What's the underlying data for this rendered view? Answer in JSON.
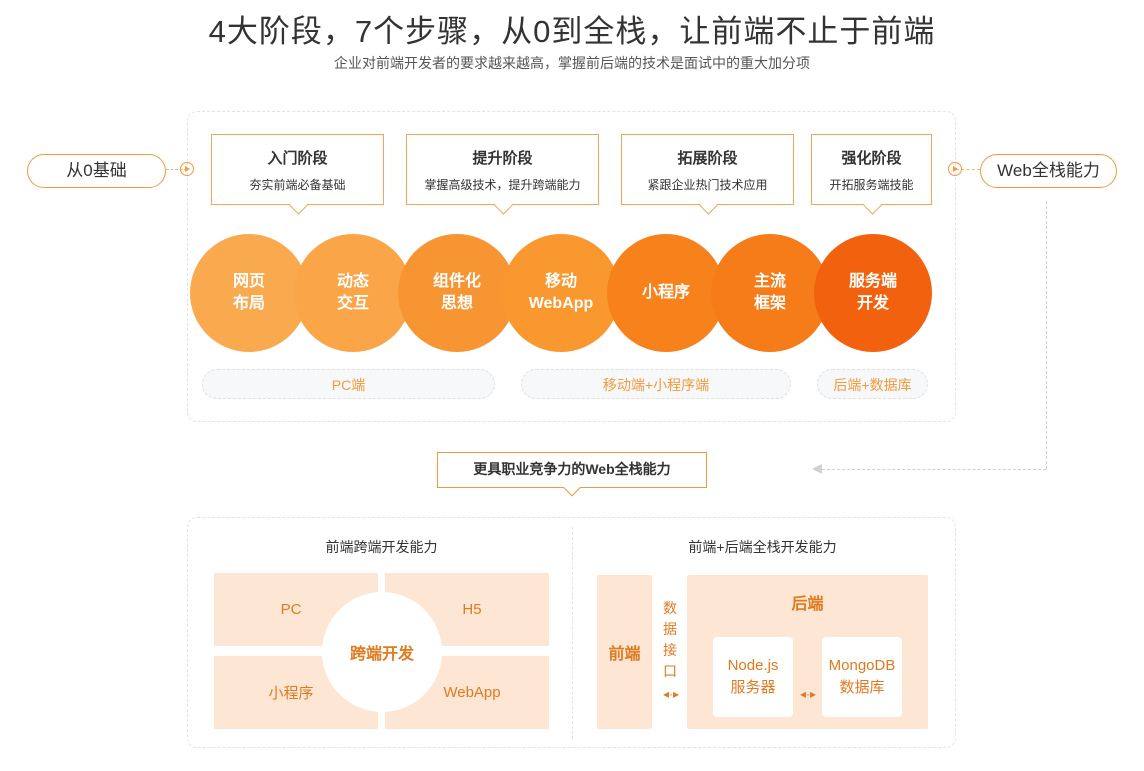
{
  "header": {
    "title": "4大阶段，7个步骤，从0到全栈，让前端不止于前端",
    "subtitle": "企业对前端开发者的要求越来越高，掌握前后端的技术是面试中的重大加分项"
  },
  "flow": {
    "start_label": "从0基础",
    "end_label": "Web全栈能力"
  },
  "stages": [
    {
      "title": "入门阶段",
      "desc": "夯实前端必备基础"
    },
    {
      "title": "提升阶段",
      "desc": "掌握高级技术，提升跨端能力"
    },
    {
      "title": "拓展阶段",
      "desc": "紧跟企业热门技术应用"
    },
    {
      "title": "强化阶段",
      "desc": "开拓服务端技能"
    }
  ],
  "steps": [
    {
      "label": "网页\n布局",
      "color": "#f9aa4e"
    },
    {
      "label": "动态\n交互",
      "color": "#f9a548"
    },
    {
      "label": "组件化\n思想",
      "color": "#f89533"
    },
    {
      "label": "移动\nWebApp",
      "color": "#f8982e"
    },
    {
      "label": "小程序",
      "color": "#f7821c"
    },
    {
      "label": "主流\n框架",
      "color": "#f67c1a"
    },
    {
      "label": "服务端\n开发",
      "color": "#f2620e"
    }
  ],
  "bands": {
    "pc": "PC端",
    "mobile": "移动端+小程序端",
    "backend": "后端+数据库"
  },
  "result_tag": "更具职业竞争力的Web全栈能力",
  "cross_platform": {
    "title": "前端跨端开发能力",
    "center": "跨端开发",
    "pc": "PC",
    "h5": "H5",
    "mini": "小程序",
    "webapp": "WebApp"
  },
  "fullstack": {
    "title": "前端+后端全栈开发能力",
    "frontend": "前端",
    "api": "数据\n接口",
    "backend": "后端",
    "node": "Node.js\n服务器",
    "mongo": "MongoDB\n数据库"
  },
  "colors": {
    "accent": "#f29a3c",
    "light": "#fde7d4",
    "text_orange": "#e07a20"
  }
}
